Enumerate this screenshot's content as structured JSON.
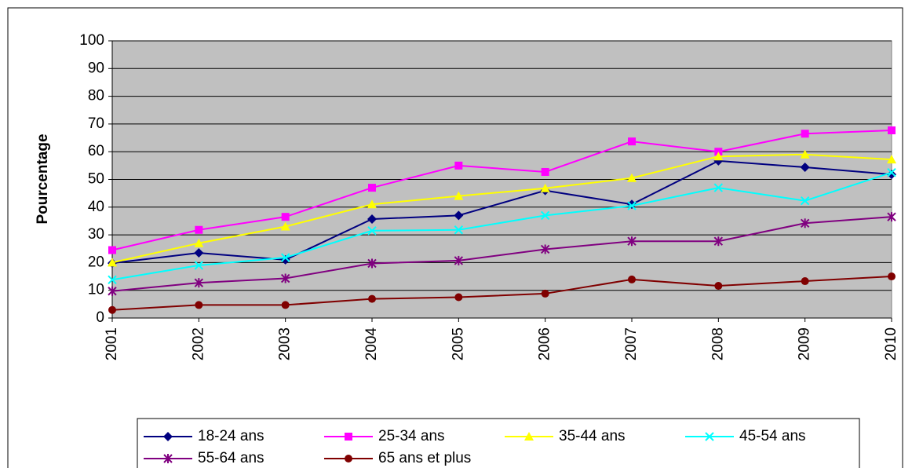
{
  "chart_data": {
    "type": "line",
    "y_label": "Pourcentage",
    "categories": [
      "2001",
      "2002",
      "2003",
      "2004",
      "2005",
      "2006",
      "2007",
      "2008",
      "2009",
      "2010"
    ],
    "series": [
      {
        "name": "18-24 ans",
        "color": "#000080",
        "marker": "diamond",
        "values": [
          19.8,
          23.5,
          21,
          35.7,
          37,
          46,
          41,
          56.7,
          54.4,
          51.8
        ]
      },
      {
        "name": "25-34 ans",
        "color": "#ff00ff",
        "marker": "square",
        "values": [
          24.5,
          31.8,
          36.5,
          47,
          55,
          52.7,
          63.7,
          60,
          66.5,
          67.7
        ]
      },
      {
        "name": "35-44 ans",
        "color": "#ffff00",
        "marker": "triangle",
        "values": [
          20,
          27,
          33,
          41,
          44,
          46.8,
          50.5,
          58.3,
          59,
          57.2
        ]
      },
      {
        "name": "45-54 ans",
        "color": "#00ffff",
        "marker": "x",
        "values": [
          13.8,
          19,
          21.8,
          31.5,
          31.8,
          37,
          40.5,
          47,
          42.3,
          52.5
        ]
      },
      {
        "name": "55-64 ans",
        "color": "#800080",
        "marker": "star",
        "values": [
          9.7,
          12.7,
          14.3,
          19.7,
          20.7,
          24.8,
          27.7,
          27.7,
          34.2,
          36.5
        ]
      },
      {
        "name": "65 ans et plus",
        "color": "#800000",
        "marker": "circle",
        "values": [
          2.9,
          4.7,
          4.7,
          6.9,
          7.5,
          8.8,
          13.9,
          11.6,
          13.3,
          15
        ]
      }
    ],
    "ylim": [
      0,
      100
    ],
    "yticks": [
      0,
      10,
      20,
      30,
      40,
      50,
      60,
      70,
      80,
      90,
      100
    ],
    "grid": true
  }
}
